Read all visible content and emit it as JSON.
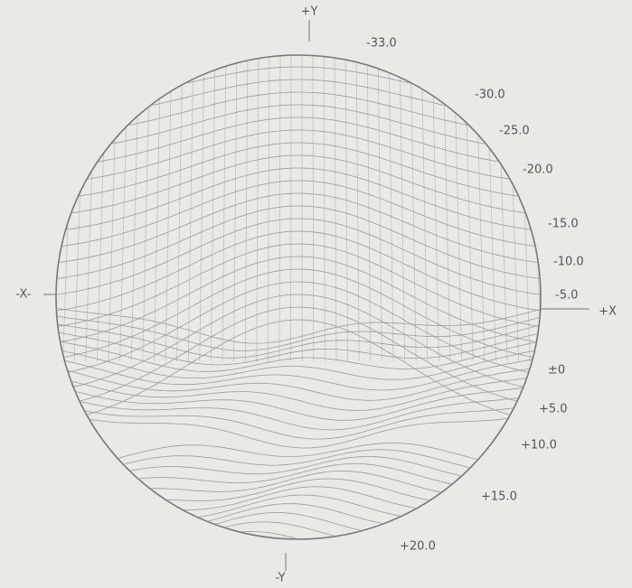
{
  "axis_labels": {
    "top": "+Y",
    "bottom": "-Y",
    "left": "-X-",
    "right": "+X"
  },
  "contour_labels": [
    "-33.0",
    "-30.0",
    "-25.0",
    "-20.0",
    "-15.0",
    "-10.0",
    "-5.0",
    "±0",
    "+5.0",
    "+10.0",
    "+15.0",
    "+20.0"
  ]
}
